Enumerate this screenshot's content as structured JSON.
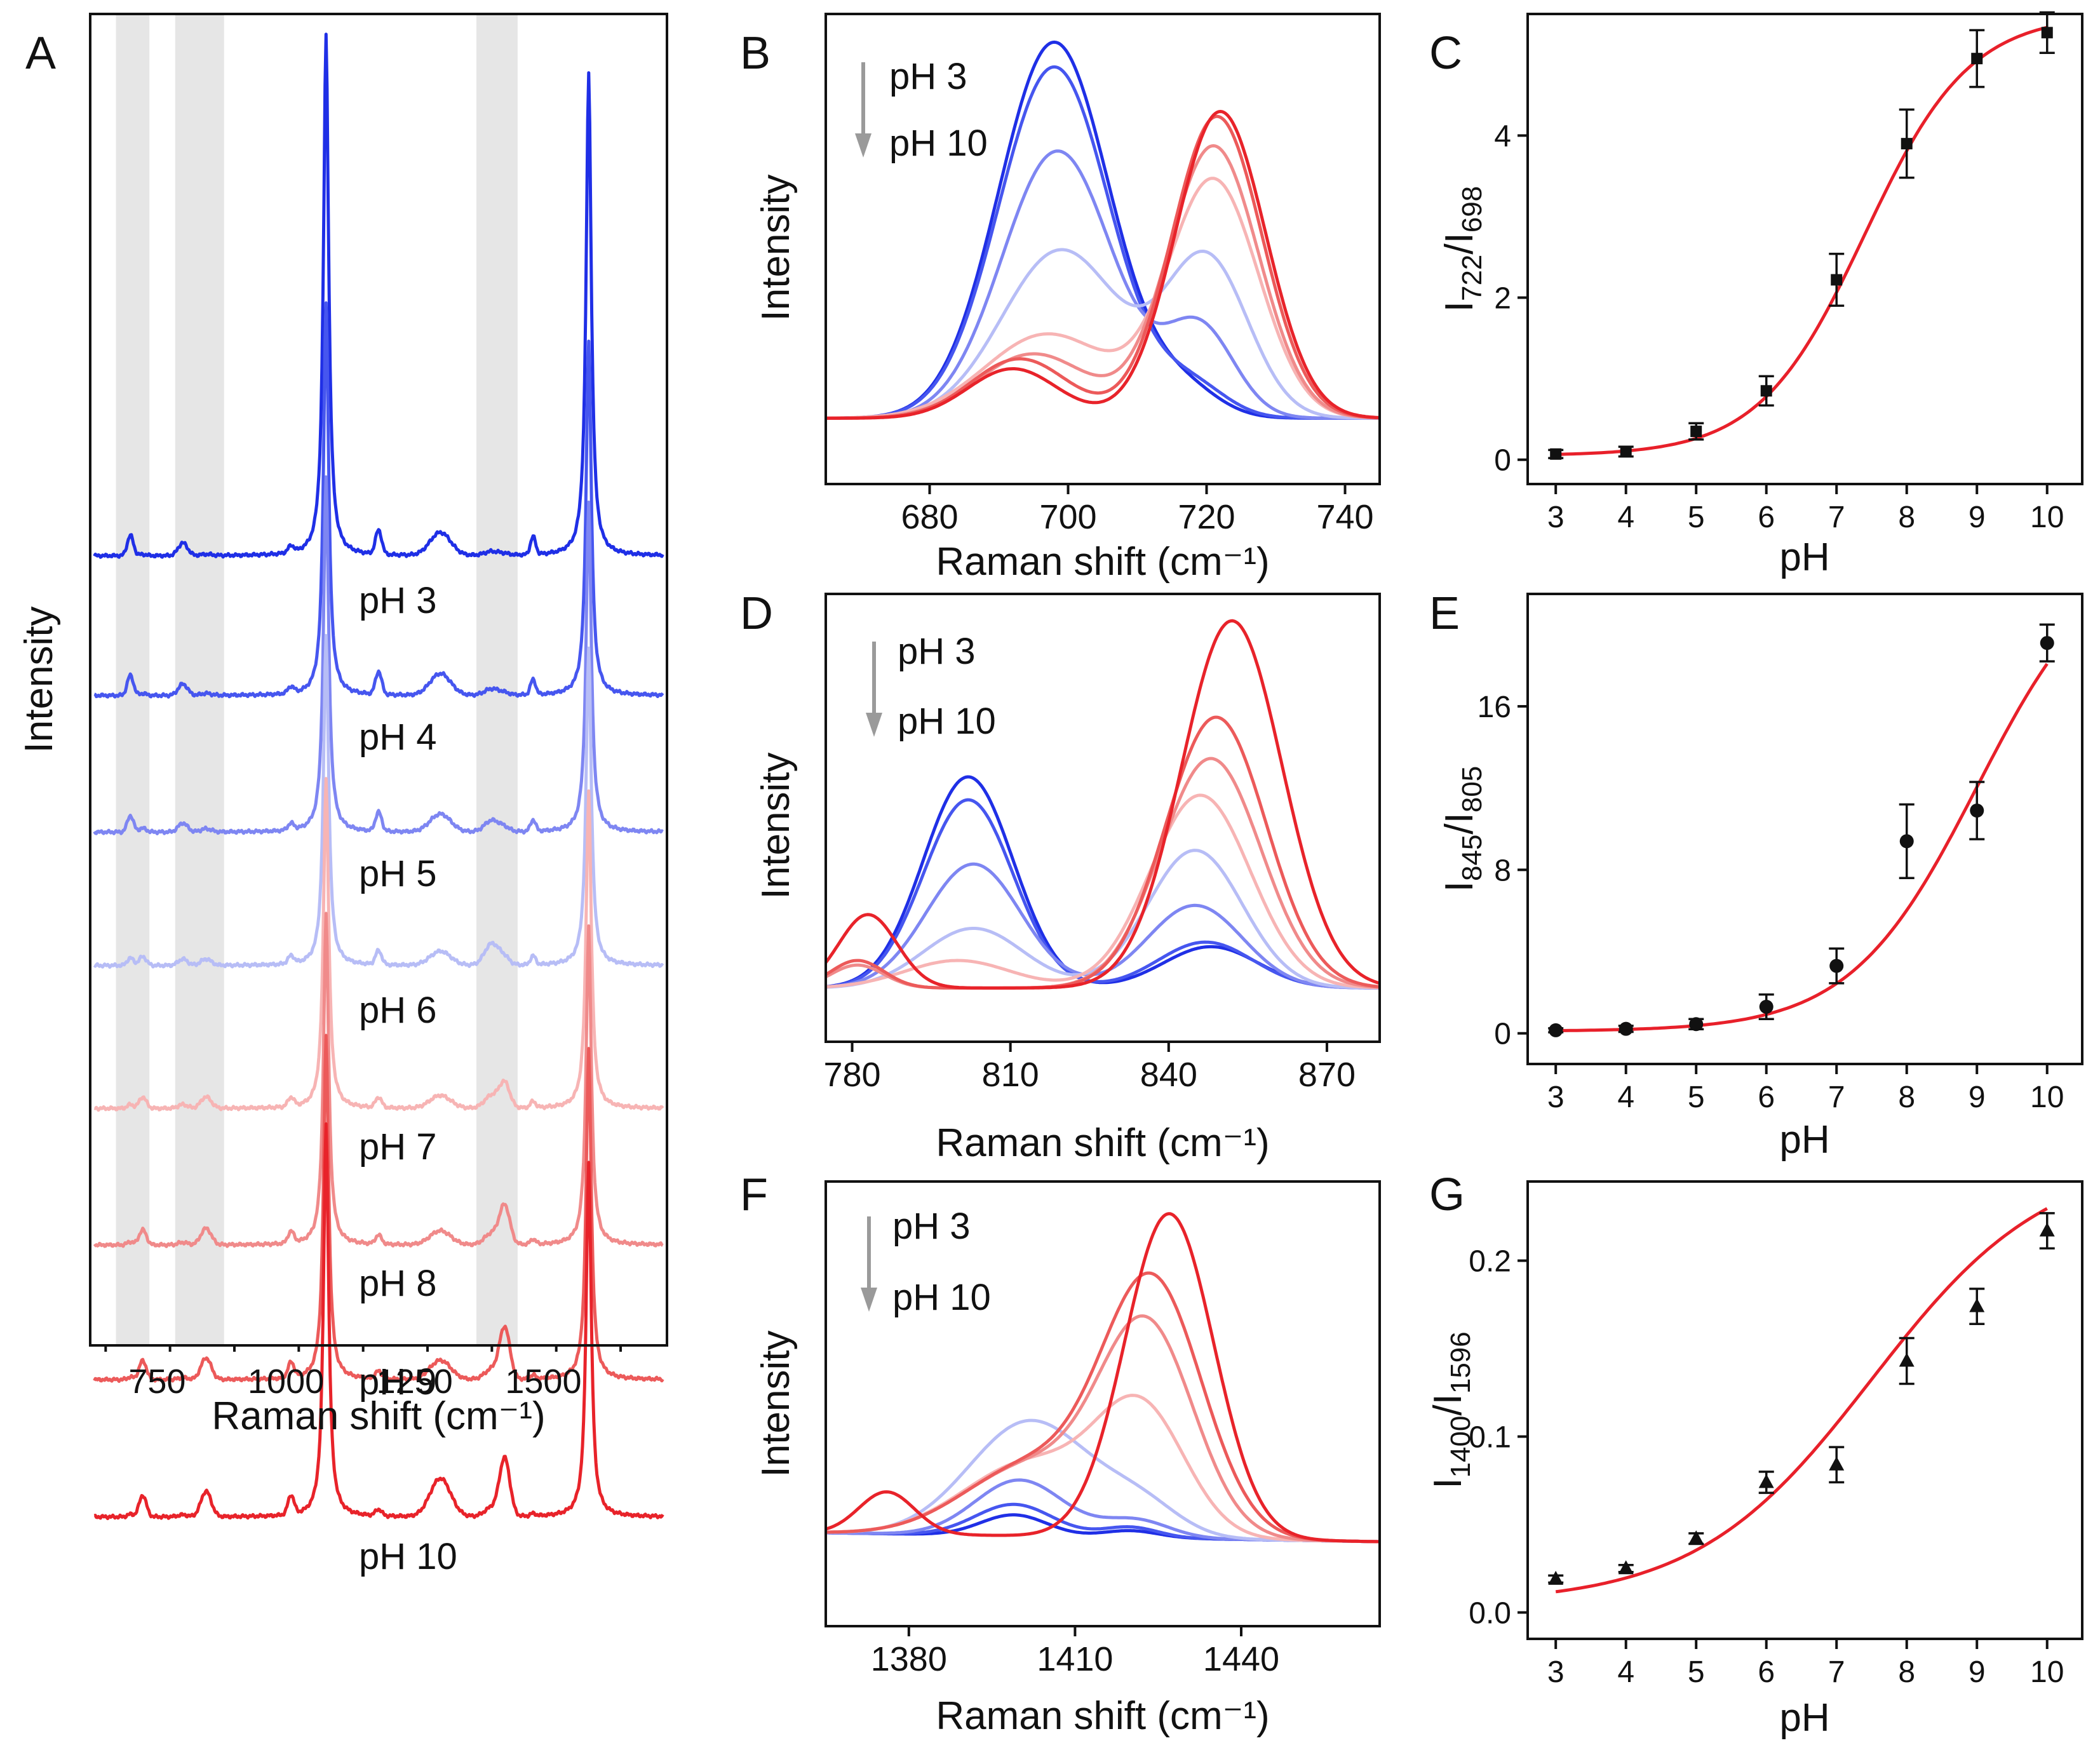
{
  "figure_title": "Raman spectra and intensity-ratio calibration curves at pH 3 to pH 10",
  "colors": {
    "ph_series": [
      "#1f2fe6",
      "#4656ef",
      "#7e86f2",
      "#b7bdf6",
      "#f7b4b4",
      "#f08a8a",
      "#ec5a5a",
      "#e8232a"
    ],
    "fit_line": "#e8202a",
    "shade": "#e6e6e6",
    "arrow": "#9a9a9a"
  },
  "ph_labels": [
    "pH 3",
    "pH 4",
    "pH 5",
    "pH 6",
    "pH 7",
    "pH 8",
    "pH 9",
    "pH 10"
  ],
  "chart_data": [
    {
      "panel": "A",
      "type": "line",
      "title": "A",
      "xlabel": "Raman shift (cm⁻¹)",
      "ylabel": "Intensity",
      "xlim": [
        620,
        1740
      ],
      "xticks": [
        750,
        1000,
        1250,
        1500
      ],
      "shaded_regions": [
        [
          670,
          735
        ],
        [
          785,
          880
        ],
        [
          1370,
          1450
        ]
      ],
      "peak_positions": [
        698,
        722,
        800,
        845,
        1010,
        1078,
        1180,
        1300,
        1400,
        1425,
        1480,
        1588
      ],
      "series_names": [
        "pH 3",
        "pH 4",
        "pH 5",
        "pH 6",
        "pH 7",
        "pH 8",
        "pH 9",
        "pH 10"
      ]
    },
    {
      "panel": "B",
      "type": "line",
      "title": "B",
      "xlabel": "Raman shift (cm⁻¹)",
      "ylabel": "Intensity",
      "xlim": [
        665,
        745
      ],
      "xticks": [
        680,
        700,
        720,
        740
      ],
      "arrow_label_top": "pH 3",
      "arrow_label_bottom": "pH 10",
      "series": [
        {
          "name": "pH 3",
          "peaks": [
            [
              698,
              7.6,
              8.0
            ],
            [
              717,
              0.5,
              5
            ]
          ]
        },
        {
          "name": "pH 4",
          "peaks": [
            [
              698,
              7.1,
              8.0
            ],
            [
              718,
              0.6,
              5
            ]
          ]
        },
        {
          "name": "pH 5",
          "peaks": [
            [
              698.5,
              5.4,
              8.0
            ],
            [
              719,
              1.8,
              5
            ]
          ]
        },
        {
          "name": "pH 6",
          "peaks": [
            [
              699,
              3.4,
              8.5
            ],
            [
              720,
              3.2,
              6
            ]
          ]
        },
        {
          "name": "pH 7",
          "peaks": [
            [
              697,
              1.7,
              9
            ],
            [
              721,
              4.8,
              6.5
            ]
          ]
        },
        {
          "name": "pH 8",
          "peaks": [
            [
              695,
              1.3,
              8
            ],
            [
              721,
              5.5,
              6.5
            ]
          ]
        },
        {
          "name": "pH 9",
          "peaks": [
            [
              693,
              1.2,
              7
            ],
            [
              721.5,
              6.1,
              6.5
            ]
          ]
        },
        {
          "name": "pH 10",
          "peaks": [
            [
              692,
              1.0,
              6.5
            ],
            [
              722,
              6.2,
              6.5
            ]
          ]
        }
      ]
    },
    {
      "panel": "C",
      "type": "scatter",
      "title": "C",
      "xlabel": "pH",
      "ylabel_main": "I",
      "ylabel_sub1": "722",
      "ylabel_sep": "/I",
      "ylabel_sub2": "698",
      "xlim": [
        2.6,
        10.5
      ],
      "ylim": [
        -0.3,
        5.5
      ],
      "xticks": [
        3,
        4,
        5,
        6,
        7,
        8,
        9,
        10
      ],
      "yticks": [
        0,
        2,
        4
      ],
      "marker": "square",
      "x": [
        3,
        4,
        5,
        6,
        7,
        8,
        9,
        10
      ],
      "y": [
        0.07,
        0.1,
        0.35,
        0.85,
        2.22,
        3.9,
        4.95,
        5.27
      ],
      "err": [
        0.05,
        0.06,
        0.1,
        0.18,
        0.32,
        0.42,
        0.35,
        0.25
      ],
      "fit": {
        "model": "sigmoid",
        "A1": 0.05,
        "A2": 5.5,
        "x0": 7.4,
        "dx": 0.75
      }
    },
    {
      "panel": "D",
      "type": "line",
      "title": "D",
      "xlabel": "Raman shift (cm⁻¹)",
      "ylabel": "Intensity",
      "xlim": [
        775,
        880
      ],
      "xticks": [
        780,
        810,
        840,
        870
      ],
      "arrow_label_top": "pH 3",
      "arrow_label_bottom": "pH 10",
      "series": [
        {
          "name": "pH 3",
          "peaks": [
            [
              802,
              4.6,
              8.5
            ],
            [
              848,
              0.9,
              9
            ]
          ]
        },
        {
          "name": "pH 4",
          "peaks": [
            [
              802,
              4.1,
              8.5
            ],
            [
              847,
              1.0,
              9
            ]
          ]
        },
        {
          "name": "pH 5",
          "peaks": [
            [
              803,
              2.7,
              9
            ],
            [
              845,
              1.8,
              9
            ]
          ]
        },
        {
          "name": "pH 6",
          "peaks": [
            [
              803,
              1.3,
              9.5
            ],
            [
              845,
              3.0,
              9
            ]
          ]
        },
        {
          "name": "pH 7",
          "peaks": [
            [
              800,
              0.6,
              10
            ],
            [
              846,
              4.2,
              9.5
            ]
          ]
        },
        {
          "name": "pH 8",
          "peaks": [
            [
              781,
              0.5,
              5
            ],
            [
              848,
              5.0,
              9.5
            ]
          ]
        },
        {
          "name": "pH 9",
          "peaks": [
            [
              781,
              0.6,
              5
            ],
            [
              849,
              5.9,
              9.5
            ]
          ]
        },
        {
          "name": "pH 10",
          "peaks": [
            [
              783,
              1.6,
              5.5
            ],
            [
              852,
              8.0,
              9.5
            ]
          ]
        }
      ]
    },
    {
      "panel": "E",
      "type": "scatter",
      "title": "E",
      "xlabel": "pH",
      "ylabel_main": "I",
      "ylabel_sub1": "845",
      "ylabel_sep": "/I",
      "ylabel_sub2": "805",
      "xlim": [
        2.6,
        10.5
      ],
      "ylim": [
        -1.5,
        21.5
      ],
      "xticks": [
        3,
        4,
        5,
        6,
        7,
        8,
        9,
        10
      ],
      "yticks": [
        0,
        8,
        16
      ],
      "marker": "circle",
      "x": [
        3,
        4,
        5,
        6,
        7,
        8,
        9,
        10
      ],
      "y": [
        0.15,
        0.22,
        0.45,
        1.3,
        3.3,
        9.4,
        10.9,
        19.1
      ],
      "err": [
        0.1,
        0.15,
        0.25,
        0.6,
        0.85,
        1.8,
        1.4,
        0.9
      ],
      "fit": {
        "model": "sigmoid",
        "A1": 0.1,
        "A2": 24,
        "x0": 9.0,
        "dx": 0.9
      }
    },
    {
      "panel": "F",
      "type": "line",
      "title": "F",
      "xlabel": "Raman shift (cm⁻¹)",
      "ylabel": "Intensity",
      "xlim": [
        1365,
        1465
      ],
      "xticks": [
        1380,
        1410,
        1440
      ],
      "arrow_label_top": "pH 3",
      "arrow_label_bottom": "pH 10",
      "series": [
        {
          "name": "pH 3",
          "peaks": [
            [
              1399,
              0.6,
              6
            ],
            [
              1420,
              0.2,
              5
            ]
          ]
        },
        {
          "name": "pH 4",
          "peaks": [
            [
              1399,
              0.9,
              7
            ],
            [
              1420,
              0.3,
              5
            ]
          ]
        },
        {
          "name": "pH 5",
          "peaks": [
            [
              1400,
              1.6,
              8
            ],
            [
              1421,
              0.5,
              6
            ]
          ]
        },
        {
          "name": "pH 6",
          "peaks": [
            [
              1402,
              3.3,
              11
            ],
            [
              1422,
              0.8,
              7
            ]
          ]
        },
        {
          "name": "pH 7",
          "peaks": [
            [
              1402,
              2.1,
              12
            ],
            [
              1422,
              3.5,
              8
            ]
          ]
        },
        {
          "name": "pH 8",
          "peaks": [
            [
              1402,
              2.0,
              12
            ],
            [
              1423,
              5.9,
              8.5
            ]
          ]
        },
        {
          "name": "pH 9",
          "peaks": [
            [
              1402,
              2.0,
              12
            ],
            [
              1424,
              7.2,
              9
            ]
          ]
        },
        {
          "name": "pH 10",
          "peaks": [
            [
              1376,
              1.2,
              5
            ],
            [
              1427,
              9.3,
              8
            ]
          ]
        }
      ]
    },
    {
      "panel": "G",
      "type": "scatter",
      "title": "G",
      "xlabel": "pH",
      "ylabel_main": "I",
      "ylabel_sub1": "1400",
      "ylabel_sep": "/I",
      "ylabel_sub2": "1596",
      "xlim": [
        2.6,
        10.5
      ],
      "ylim": [
        -0.015,
        0.245
      ],
      "xticks": [
        3,
        4,
        5,
        6,
        7,
        8,
        9,
        10
      ],
      "yticks": [
        0.0,
        0.1,
        0.2
      ],
      "ytick_labels": [
        "0.0",
        "0.1",
        "0.2"
      ],
      "marker": "triangle",
      "x": [
        3,
        4,
        5,
        6,
        7,
        8,
        9,
        10
      ],
      "y": [
        0.019,
        0.025,
        0.042,
        0.074,
        0.084,
        0.143,
        0.174,
        0.217
      ],
      "err": [
        0.002,
        0.002,
        0.003,
        0.006,
        0.01,
        0.013,
        0.01,
        0.01
      ],
      "fit": {
        "model": "sigmoid",
        "A1": 0.005,
        "A2": 0.26,
        "x0": 7.5,
        "dx": 1.25
      }
    }
  ]
}
